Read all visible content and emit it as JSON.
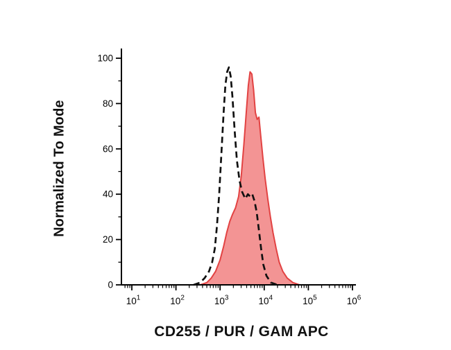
{
  "chart_data": {
    "type": "area",
    "subtype": "flow-cytometry-histogram",
    "title": "",
    "xlabel": "CD255 / PUR / GAM APC",
    "ylabel": "Normalized To Mode",
    "x_scale": "log10",
    "x_log_range": [
      1,
      6
    ],
    "x_tick_base": "10",
    "x_tick_exponents": [
      1,
      2,
      3,
      4,
      5,
      6
    ],
    "x_tick_labels": [
      "10^1",
      "10^2",
      "10^3",
      "10^4",
      "10^5",
      "10^6"
    ],
    "ylim": [
      0,
      100
    ],
    "y_ticks": [
      0,
      20,
      40,
      60,
      80,
      100
    ],
    "grid": false,
    "legend": "none",
    "colors": {
      "sample_fill": "#f28b8b",
      "sample_stroke": "#e24242",
      "control_stroke": "#111111",
      "axis": "#000000"
    },
    "series": [
      {
        "id": "series-sample-filled",
        "name": "stained sample (red filled)",
        "style": "filled-area",
        "fill": "#f28b8b",
        "stroke": "#e24242",
        "points": [
          [
            2.55,
            0
          ],
          [
            2.7,
            1
          ],
          [
            2.8,
            3
          ],
          [
            2.9,
            6
          ],
          [
            3.0,
            11
          ],
          [
            3.08,
            17
          ],
          [
            3.15,
            23
          ],
          [
            3.22,
            28
          ],
          [
            3.28,
            31
          ],
          [
            3.35,
            34
          ],
          [
            3.42,
            39
          ],
          [
            3.48,
            48
          ],
          [
            3.54,
            62
          ],
          [
            3.6,
            78
          ],
          [
            3.64,
            88
          ],
          [
            3.68,
            94
          ],
          [
            3.72,
            93
          ],
          [
            3.76,
            86
          ],
          [
            3.8,
            76
          ],
          [
            3.84,
            73
          ],
          [
            3.88,
            74
          ],
          [
            3.92,
            66
          ],
          [
            3.97,
            56
          ],
          [
            4.02,
            47
          ],
          [
            4.08,
            38
          ],
          [
            4.14,
            30
          ],
          [
            4.2,
            23
          ],
          [
            4.27,
            16
          ],
          [
            4.34,
            10
          ],
          [
            4.42,
            6
          ],
          [
            4.52,
            3
          ],
          [
            4.65,
            1
          ],
          [
            4.8,
            0
          ]
        ]
      },
      {
        "id": "series-control-dashed",
        "name": "negative control (black dashed)",
        "style": "dashed-line",
        "color": "#111111",
        "points": [
          [
            2.4,
            0
          ],
          [
            2.55,
            1
          ],
          [
            2.65,
            3
          ],
          [
            2.75,
            6
          ],
          [
            2.82,
            10
          ],
          [
            2.88,
            16
          ],
          [
            2.93,
            26
          ],
          [
            2.98,
            40
          ],
          [
            3.03,
            58
          ],
          [
            3.08,
            76
          ],
          [
            3.12,
            88
          ],
          [
            3.16,
            94
          ],
          [
            3.2,
            96
          ],
          [
            3.24,
            92
          ],
          [
            3.28,
            83
          ],
          [
            3.33,
            68
          ],
          [
            3.38,
            55
          ],
          [
            3.44,
            46
          ],
          [
            3.5,
            41
          ],
          [
            3.57,
            38
          ],
          [
            3.63,
            40
          ],
          [
            3.68,
            39
          ],
          [
            3.73,
            40
          ],
          [
            3.78,
            37
          ],
          [
            3.83,
            32
          ],
          [
            3.88,
            24
          ],
          [
            3.93,
            16
          ],
          [
            3.98,
            9
          ],
          [
            4.05,
            4
          ],
          [
            4.15,
            1
          ],
          [
            4.3,
            0
          ]
        ]
      }
    ]
  }
}
